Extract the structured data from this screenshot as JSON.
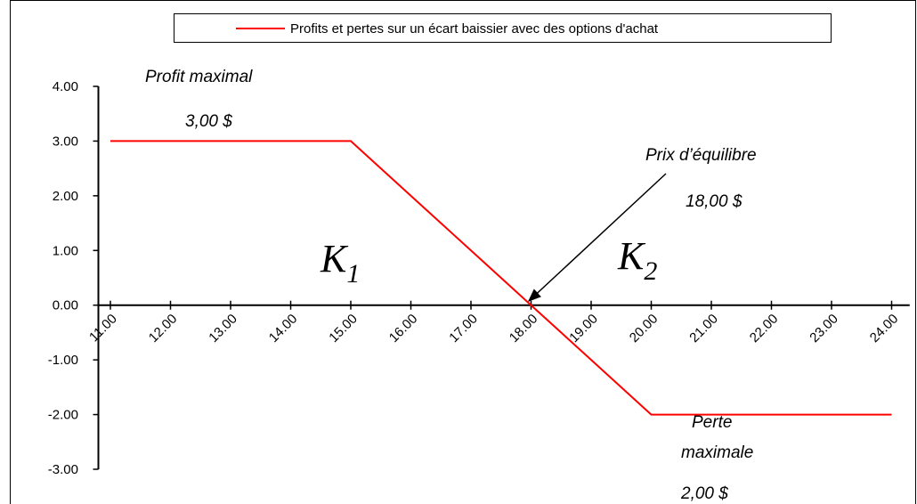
{
  "chart_data": {
    "type": "line",
    "series": [
      {
        "name": "Profits et pertes sur un écart baissier avec des options d'achat",
        "color": "#ff0000",
        "values": [
          3,
          3,
          3,
          3,
          3,
          2,
          1,
          0,
          -1,
          -2,
          -2,
          -2,
          -2,
          -2
        ]
      }
    ],
    "x": [
      11,
      12,
      13,
      14,
      15,
      16,
      17,
      18,
      19,
      20,
      21,
      22,
      23,
      24
    ],
    "xlim": [
      10.8,
      24.3
    ],
    "xticks": [
      {
        "value": 11,
        "label": "11.00"
      },
      {
        "value": 12,
        "label": "12.00"
      },
      {
        "value": 13,
        "label": "13.00"
      },
      {
        "value": 14,
        "label": "14.00"
      },
      {
        "value": 15,
        "label": "15.00"
      },
      {
        "value": 16,
        "label": "16.00"
      },
      {
        "value": 17,
        "label": "17.00"
      },
      {
        "value": 18,
        "label": "18.00"
      },
      {
        "value": 19,
        "label": "19.00"
      },
      {
        "value": 20,
        "label": "20.00"
      },
      {
        "value": 21,
        "label": "21.00"
      },
      {
        "value": 22,
        "label": "22.00"
      },
      {
        "value": 23,
        "label": "23.00"
      },
      {
        "value": 24,
        "label": "24.00"
      }
    ],
    "ylim": [
      -3,
      4
    ],
    "yticks": [
      {
        "value": 4,
        "label": "4.00"
      },
      {
        "value": 3,
        "label": "3.00"
      },
      {
        "value": 2,
        "label": "2.00"
      },
      {
        "value": 1,
        "label": "1.00"
      },
      {
        "value": 0,
        "label": "0.00"
      },
      {
        "value": -1,
        "label": "-1.00"
      },
      {
        "value": -2,
        "label": "-2.00"
      },
      {
        "value": -3,
        "label": "-3.00"
      }
    ],
    "legend": "top",
    "annotations": {
      "profit_title": "Profit maximal",
      "profit_value": "3,00 $",
      "breakeven_title": "Prix d’équilibre",
      "breakeven_value": "18,00 $",
      "k1": {
        "text": "K",
        "sub": "1"
      },
      "k2": {
        "text": "K",
        "sub": "2"
      },
      "loss_title_1": "Perte",
      "loss_title_2": "maximale",
      "loss_value": "2,00 $"
    }
  }
}
